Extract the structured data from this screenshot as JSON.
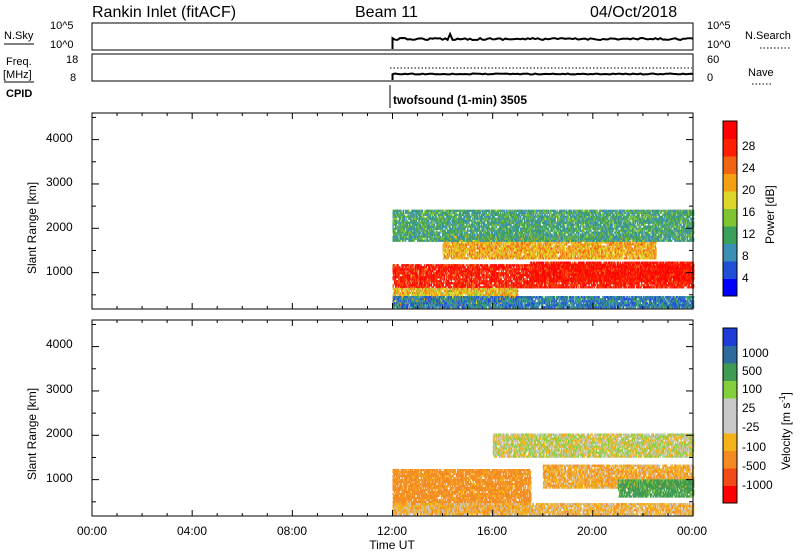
{
  "header": {
    "station": "Rankin Inlet (fitACF)",
    "beam": "Beam 11",
    "date": "04/Oct/2018"
  },
  "top_panels": {
    "nsky": {
      "left_label": "N.Sky",
      "left_ticks": [
        "10^5",
        "10^0"
      ],
      "right_ticks": [
        "10^5",
        "10^0"
      ],
      "right_label": "N.Search"
    },
    "freq": {
      "left_label_1": "Freq.",
      "left_label_2": "[MHz]",
      "left_ticks": [
        "18",
        "8"
      ],
      "right_ticks": [
        "60",
        "0"
      ],
      "right_label": "Nave"
    },
    "cpid": {
      "label": "CPID",
      "text": "twofsound (1-min) 3505"
    }
  },
  "axes": {
    "ylabel": "Slant Range [km]",
    "xlabel": "Time UT",
    "yticks": [
      "4000",
      "3000",
      "2000",
      "1000"
    ],
    "xticks": [
      "00:00",
      "04:00",
      "08:00",
      "12:00",
      "16:00",
      "20:00",
      "00:00"
    ]
  },
  "colorbars": {
    "power": {
      "label": "Power [dB]",
      "ticks": [
        "28",
        "24",
        "20",
        "16",
        "12",
        "8",
        "4"
      ],
      "colors": [
        "#0000ff",
        "#1f4fd6",
        "#3a8fb4",
        "#3aa05a",
        "#7fc431",
        "#e0d52a",
        "#f5a014",
        "#f06414",
        "#ff1e00",
        "#ff0000"
      ]
    },
    "velocity": {
      "label_main": "Velocity [m s",
      "label_sup": "-1",
      "label_end": "]",
      "ticks": [
        "1000",
        "500",
        "100",
        "25",
        "-25",
        "-100",
        "-500",
        "-1000"
      ],
      "colors": [
        "#ff0000",
        "#f24a18",
        "#f38a22",
        "#f4b21a",
        "#c8c8c8",
        "#c8c8c8",
        "#83cf3c",
        "#3f9a52",
        "#2e6a9b",
        "#1e3cd8"
      ]
    }
  },
  "chart_data": [
    {
      "type": "heatmap",
      "title": "Rankin Inlet (fitACF) Beam 11 04/Oct/2018",
      "quantity": "Power [dB]",
      "xlabel": "Time UT",
      "ylabel": "Slant Range [km]",
      "xlim_hours": [
        0,
        24
      ],
      "ylim_km": [
        180,
        4600
      ],
      "clim": [
        0,
        30
      ],
      "regions": [
        {
          "t_start": 12.0,
          "t_end": 24.0,
          "r_start": 650,
          "r_end": 1150,
          "value": 26
        },
        {
          "t_start": 17.5,
          "t_end": 24.0,
          "r_start": 800,
          "r_end": 1250,
          "value": 27
        },
        {
          "t_start": 12.0,
          "t_end": 17.0,
          "r_start": 250,
          "r_end": 650,
          "value": 18
        },
        {
          "t_start": 14.0,
          "t_end": 22.5,
          "r_start": 1300,
          "r_end": 1800,
          "value": 19
        },
        {
          "t_start": 12.0,
          "t_end": 24.0,
          "r_start": 1700,
          "r_end": 2400,
          "value": 10
        },
        {
          "t_start": 12.0,
          "t_end": 24.0,
          "r_start": 200,
          "r_end": 450,
          "value": 7
        }
      ]
    },
    {
      "type": "heatmap",
      "title": "",
      "quantity": "Velocity [m s-1]",
      "xlabel": "Time UT",
      "ylabel": "Slant Range [km]",
      "xlim_hours": [
        0,
        24
      ],
      "ylim_km": [
        180,
        4600
      ],
      "clim": [
        -1000,
        1000
      ],
      "regions": [
        {
          "t_start": 12.0,
          "t_end": 17.5,
          "r_start": 250,
          "r_end": 1200,
          "value": -150
        },
        {
          "t_start": 16.0,
          "t_end": 24.0,
          "r_start": 1500,
          "r_end": 2000,
          "value": 0
        },
        {
          "t_start": 18.0,
          "t_end": 24.0,
          "r_start": 800,
          "r_end": 1300,
          "value": -80
        },
        {
          "t_start": 21.0,
          "t_end": 24.0,
          "r_start": 600,
          "r_end": 1000,
          "value": 150
        },
        {
          "t_start": 12.0,
          "t_end": 24.0,
          "r_start": 200,
          "r_end": 450,
          "value": -60
        }
      ]
    }
  ]
}
